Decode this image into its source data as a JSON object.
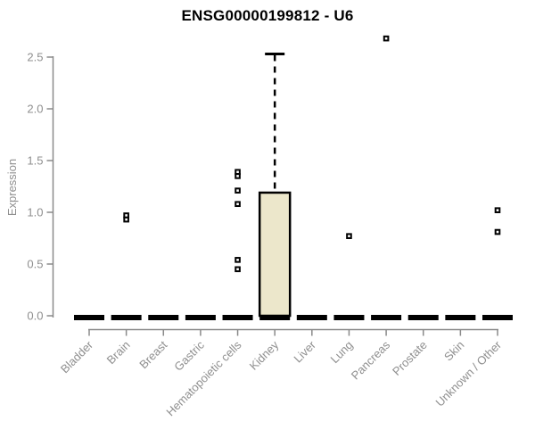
{
  "chart_data": {
    "type": "boxplot",
    "title": "ENSG00000199812 - U6",
    "ylabel": "Expression",
    "ylim": [
      0,
      2.5
    ],
    "yticks": [
      "0.0",
      "0.5",
      "1.0",
      "1.5",
      "2.0",
      "2.5"
    ],
    "grid": false,
    "legend": false,
    "categories": [
      "Bladder",
      "Brain",
      "Breast",
      "Gastric",
      "Hematopoietic cells",
      "Kidney",
      "Liver",
      "Lung",
      "Pancreas",
      "Prostate",
      "Skin",
      "Unknown / Other"
    ],
    "boxes": [
      {
        "category": "Bladder",
        "q1": 0,
        "median": 0,
        "q3": 0,
        "whisker_low": 0,
        "whisker_high": 0,
        "outliers": []
      },
      {
        "category": "Brain",
        "q1": 0,
        "median": 0,
        "q3": 0,
        "whisker_low": 0,
        "whisker_high": 0,
        "outliers": [
          0.97,
          0.93
        ]
      },
      {
        "category": "Breast",
        "q1": 0,
        "median": 0,
        "q3": 0,
        "whisker_low": 0,
        "whisker_high": 0,
        "outliers": []
      },
      {
        "category": "Gastric",
        "q1": 0,
        "median": 0,
        "q3": 0,
        "whisker_low": 0,
        "whisker_high": 0,
        "outliers": []
      },
      {
        "category": "Hematopoietic cells",
        "q1": 0,
        "median": 0,
        "q3": 0,
        "whisker_low": 0,
        "whisker_high": 0,
        "outliers": [
          1.39,
          1.35,
          1.21,
          1.08,
          0.54,
          0.45
        ]
      },
      {
        "category": "Kidney",
        "q1": 0,
        "median": 0,
        "q3": 1.19,
        "whisker_low": 0,
        "whisker_high": 2.53,
        "outliers": []
      },
      {
        "category": "Liver",
        "q1": 0,
        "median": 0,
        "q3": 0,
        "whisker_low": 0,
        "whisker_high": 0,
        "outliers": []
      },
      {
        "category": "Lung",
        "q1": 0,
        "median": 0,
        "q3": 0,
        "whisker_low": 0,
        "whisker_high": 0,
        "outliers": [
          0.77
        ]
      },
      {
        "category": "Pancreas",
        "q1": 0,
        "median": 0,
        "q3": 0,
        "whisker_low": 0,
        "whisker_high": 0,
        "outliers": [
          2.68
        ]
      },
      {
        "category": "Prostate",
        "q1": 0,
        "median": 0,
        "q3": 0,
        "whisker_low": 0,
        "whisker_high": 0,
        "outliers": []
      },
      {
        "category": "Skin",
        "q1": 0,
        "median": 0,
        "q3": 0,
        "whisker_low": 0,
        "whisker_high": 0,
        "outliers": []
      },
      {
        "category": "Unknown / Other",
        "q1": 0,
        "median": 0,
        "q3": 0,
        "whisker_low": 0,
        "whisker_high": 0,
        "outliers": [
          1.02,
          0.81
        ]
      }
    ],
    "colors": {
      "box_fill": "#ece7cb",
      "box_border": "#000000",
      "data_ink": "#000000",
      "axis": "#8a8a8a",
      "tick_label": "#8f8f8f",
      "title": "#000000",
      "background": "#ffffff"
    }
  }
}
